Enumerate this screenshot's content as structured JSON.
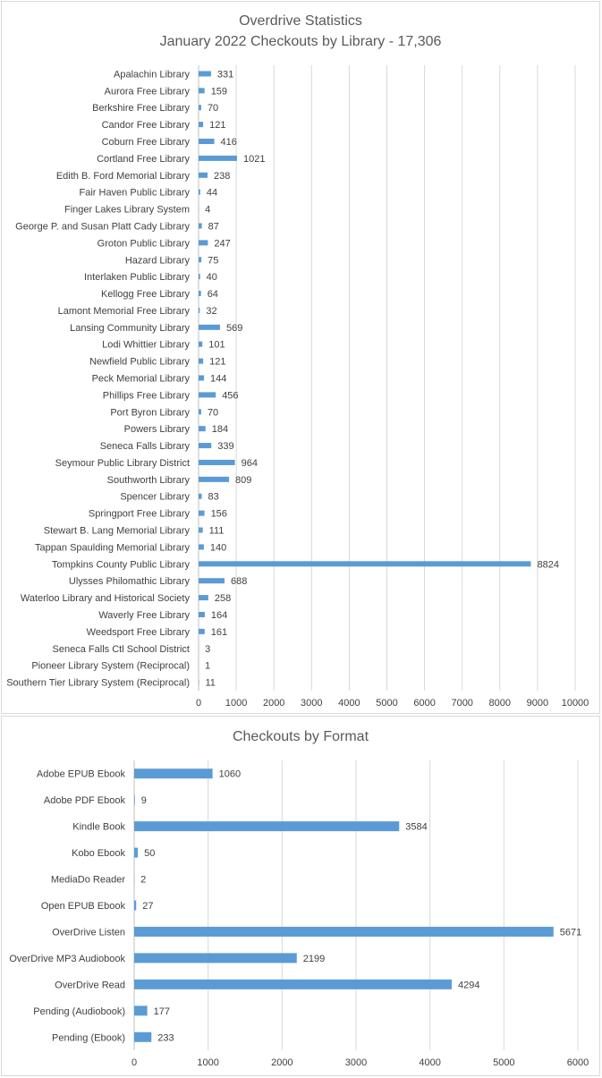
{
  "chart_data": [
    {
      "type": "bar",
      "orientation": "horizontal",
      "title": "Overdrive Statistics",
      "subtitle": "January 2022 Checkouts by Library - 17,306",
      "categories": [
        "Apalachin Library",
        "Aurora Free Library",
        "Berkshire Free Library",
        "Candor Free Library",
        "Coburn Free Library",
        "Cortland Free Library",
        "Edith B. Ford Memorial Library",
        "Fair Haven Public Library",
        "Finger Lakes Library System",
        "George P. and Susan Platt Cady Library",
        "Groton Public Library",
        "Hazard Library",
        "Interlaken Public Library",
        "Kellogg Free Library",
        "Lamont Memorial Free Library",
        "Lansing Community Library",
        "Lodi Whittier Library",
        "Newfield Public Library",
        "Peck Memorial Library",
        "Phillips Free Library",
        "Port Byron Library",
        "Powers Library",
        "Seneca Falls Library",
        "Seymour Public Library District",
        "Southworth Library",
        "Spencer Library",
        "Springport Free Library",
        "Stewart B. Lang Memorial Library",
        "Tappan Spaulding Memorial Library",
        "Tompkins County Public Library",
        "Ulysses Philomathic Library",
        "Waterloo Library and Historical Society",
        "Waverly Free Library",
        "Weedsport Free Library",
        "Seneca Falls Ctl School District",
        "Pioneer Library System (Reciprocal)",
        "Southern Tier Library System (Reciprocal)"
      ],
      "values": [
        331,
        159,
        70,
        121,
        416,
        1021,
        238,
        44,
        4,
        87,
        247,
        75,
        40,
        64,
        32,
        569,
        101,
        121,
        144,
        456,
        70,
        184,
        339,
        964,
        809,
        83,
        156,
        111,
        140,
        8824,
        688,
        258,
        164,
        161,
        3,
        1,
        11
      ],
      "xlim": [
        0,
        10000
      ],
      "xticks": [
        "0",
        "1000",
        "2000",
        "3000",
        "4000",
        "5000",
        "6000",
        "7000",
        "8000",
        "9000",
        "10000"
      ],
      "grid": "vertical",
      "bar_color": "#5b9bd5"
    },
    {
      "type": "bar",
      "orientation": "horizontal",
      "title": "Checkouts by Format",
      "categories": [
        "Adobe EPUB Ebook",
        "Adobe PDF Ebook",
        "Kindle Book",
        "Kobo Ebook",
        "MediaDo Reader",
        "Open EPUB Ebook",
        "OverDrive Listen",
        "OverDrive MP3 Audiobook",
        "OverDrive Read",
        "Pending (Audiobook)",
        "Pending (Ebook)"
      ],
      "values": [
        1060,
        9,
        3584,
        50,
        2,
        27,
        5671,
        2199,
        4294,
        177,
        233
      ],
      "xlim": [
        0,
        6000
      ],
      "xticks": [
        "0",
        "1000",
        "2000",
        "3000",
        "4000",
        "5000",
        "6000"
      ],
      "grid": "vertical",
      "bar_color": "#5b9bd5"
    }
  ]
}
